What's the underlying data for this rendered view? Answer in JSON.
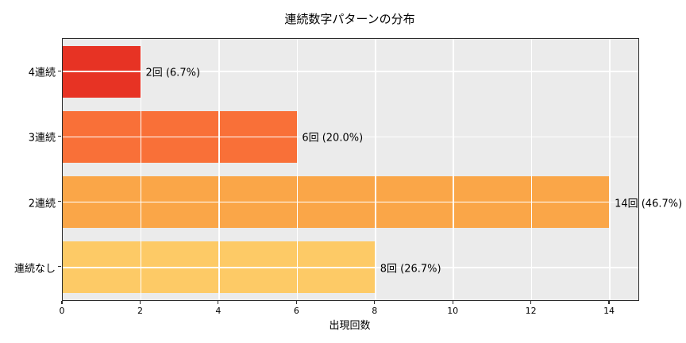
{
  "chart_data": {
    "type": "bar",
    "orientation": "horizontal",
    "title": "連続数字パターンの分布",
    "xlabel": "出現回数",
    "ylabel": "",
    "categories": [
      "4連続",
      "3連続",
      "2連続",
      "連続なし"
    ],
    "values": [
      2,
      6,
      14,
      8
    ],
    "bar_labels": [
      "2回 (6.7%)",
      "6回 (20.0%)",
      "14回 (46.7%)",
      "8回 (26.7%)"
    ],
    "bar_colors": [
      "#e73324",
      "#f97038",
      "#faa648",
      "#fdca66"
    ],
    "xlim": [
      0,
      14.73
    ],
    "xticks": [
      0,
      2,
      4,
      6,
      8,
      10,
      12,
      14
    ],
    "grid": true,
    "grid_color": "#ffffff",
    "plot_background": "#ebebeb",
    "spine_color": "#2b2b2b",
    "legend": "none"
  }
}
